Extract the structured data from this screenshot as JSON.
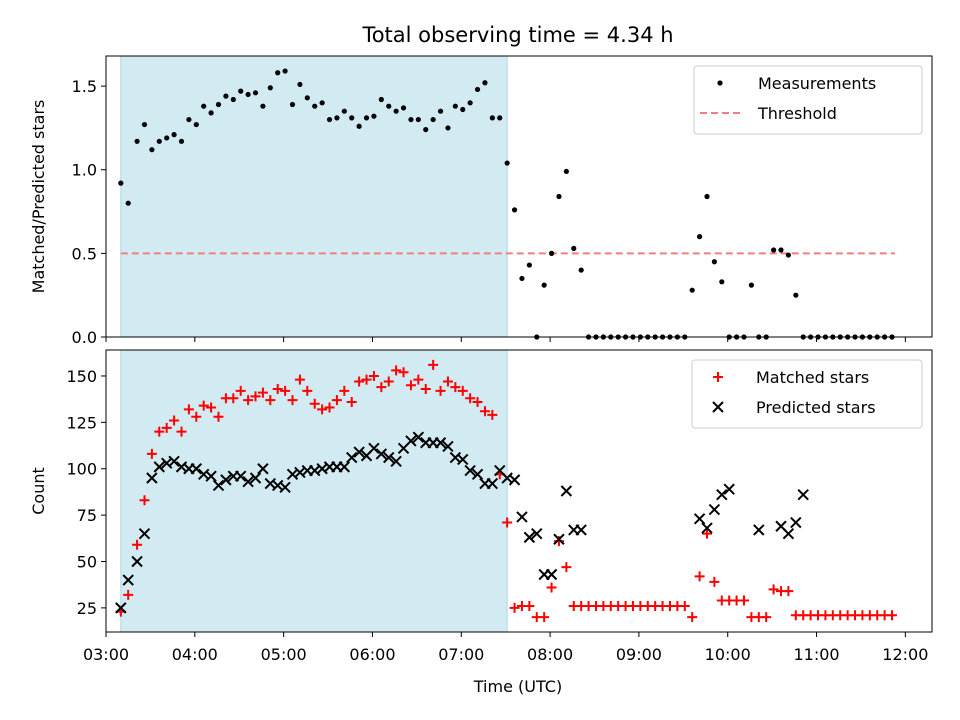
{
  "figure": {
    "title": "Total observing time = 4.34 h",
    "xlabel": "Time (UTC)",
    "shade_color": "#add8e6",
    "x_tick_labels": [
      "03:00",
      "04:00",
      "05:00",
      "06:00",
      "07:00",
      "08:00",
      "09:00",
      "10:00",
      "11:00",
      "12:00"
    ]
  },
  "chart_data": [
    {
      "type": "scatter",
      "ylabel": "Matched/Predicted stars",
      "ylim": [
        0,
        1.68
      ],
      "xlim": [
        "03:00",
        "12:18"
      ],
      "y_ticks": [
        0,
        0.5,
        1,
        1.5
      ],
      "y_tick_labels": [
        "0.0",
        "0.5",
        "1.0",
        "1.5"
      ],
      "shaded_interval": [
        "03:10",
        "07:31"
      ],
      "legend": {
        "placement": "top-right",
        "entries": [
          "Measurements",
          "Threshold"
        ]
      },
      "threshold": {
        "name": "Threshold",
        "value": 0.5,
        "x_range": [
          "03:10",
          "11:53"
        ],
        "color": "#f08080"
      },
      "series": [
        {
          "name": "Measurements",
          "marker": "dot",
          "color": "#000000",
          "x": [
            "03:10",
            "03:15",
            "03:21",
            "03:26",
            "03:31",
            "03:36",
            "03:41",
            "03:46",
            "03:51",
            "03:56",
            "04:01",
            "04:06",
            "04:11",
            "04:16",
            "04:21",
            "04:26",
            "04:31",
            "04:36",
            "04:41",
            "04:46",
            "04:51",
            "04:56",
            "05:01",
            "05:06",
            "05:11",
            "05:16",
            "05:21",
            "05:26",
            "05:31",
            "05:36",
            "05:41",
            "05:46",
            "05:51",
            "05:56",
            "06:01",
            "06:06",
            "06:11",
            "06:16",
            "06:21",
            "06:26",
            "06:31",
            "06:36",
            "06:41",
            "06:46",
            "06:51",
            "06:56",
            "07:01",
            "07:06",
            "07:11",
            "07:16",
            "07:21",
            "07:26",
            "07:31",
            "07:36",
            "07:41",
            "07:46",
            "07:51",
            "07:56",
            "08:01",
            "08:06",
            "08:11",
            "08:16",
            "08:21",
            "08:26",
            "08:31",
            "08:36",
            "08:41",
            "08:46",
            "08:51",
            "08:56",
            "09:01",
            "09:06",
            "09:11",
            "09:16",
            "09:21",
            "09:26",
            "09:31",
            "09:36",
            "09:41",
            "09:46",
            "09:51",
            "09:56",
            "10:01",
            "10:06",
            "10:11",
            "10:16",
            "10:21",
            "10:26",
            "10:31",
            "10:36",
            "10:41",
            "10:46",
            "10:51",
            "10:56",
            "11:01",
            "11:06",
            "11:11",
            "11:16",
            "11:21",
            "11:26",
            "11:31",
            "11:36",
            "11:41",
            "11:46",
            "11:51"
          ],
          "y": [
            0.92,
            0.8,
            1.17,
            1.27,
            1.12,
            1.17,
            1.19,
            1.21,
            1.17,
            1.3,
            1.27,
            1.38,
            1.34,
            1.39,
            1.44,
            1.42,
            1.47,
            1.45,
            1.46,
            1.38,
            1.49,
            1.58,
            1.59,
            1.39,
            1.51,
            1.43,
            1.38,
            1.4,
            1.3,
            1.31,
            1.35,
            1.31,
            1.26,
            1.31,
            1.32,
            1.42,
            1.38,
            1.35,
            1.37,
            1.3,
            1.3,
            1.24,
            1.3,
            1.35,
            1.25,
            1.38,
            1.36,
            1.4,
            1.48,
            1.52,
            1.31,
            1.31,
            1.04,
            0.76,
            0.35,
            0.43,
            0.0,
            0.31,
            0.5,
            0.84,
            0.99,
            0.53,
            0.4,
            0.0,
            0.0,
            0.0,
            0.0,
            0.0,
            0.0,
            0.0,
            0.0,
            0.0,
            0.0,
            0.0,
            0.0,
            0.0,
            0.0,
            0.28,
            0.6,
            0.84,
            0.45,
            0.33,
            0.0,
            0.0,
            0.0,
            0.31,
            0.0,
            0.0,
            0.52,
            0.52,
            0.49,
            0.25,
            0.0,
            0.0,
            0.0,
            0.0,
            0.0,
            0.0,
            0.0,
            0.0,
            0.0,
            0.0,
            0.0,
            0.0,
            0.0
          ]
        }
      ]
    },
    {
      "type": "scatter",
      "ylabel": "Count",
      "ylim": [
        12,
        164
      ],
      "xlim": [
        "03:00",
        "12:18"
      ],
      "y_ticks": [
        25,
        50,
        75,
        100,
        125,
        150
      ],
      "y_tick_labels": [
        "25",
        "50",
        "75",
        "100",
        "125",
        "150"
      ],
      "shaded_interval": [
        "03:10",
        "07:31"
      ],
      "legend": {
        "placement": "top-right",
        "entries": [
          "Matched stars",
          "Predicted stars"
        ]
      },
      "series": [
        {
          "name": "Matched stars",
          "marker": "plus",
          "color": "#ff0000",
          "x": [
            "03:10",
            "03:15",
            "03:21",
            "03:26",
            "03:31",
            "03:36",
            "03:41",
            "03:46",
            "03:51",
            "03:56",
            "04:01",
            "04:06",
            "04:11",
            "04:16",
            "04:21",
            "04:26",
            "04:31",
            "04:36",
            "04:41",
            "04:46",
            "04:51",
            "04:56",
            "05:01",
            "05:06",
            "05:11",
            "05:16",
            "05:21",
            "05:26",
            "05:31",
            "05:36",
            "05:41",
            "05:46",
            "05:51",
            "05:56",
            "06:01",
            "06:06",
            "06:11",
            "06:16",
            "06:21",
            "06:26",
            "06:31",
            "06:36",
            "06:41",
            "06:46",
            "06:51",
            "06:56",
            "07:01",
            "07:06",
            "07:11",
            "07:16",
            "07:21",
            "07:26",
            "07:31",
            "07:36",
            "07:41",
            "07:46",
            "07:51",
            "07:56",
            "08:01",
            "08:06",
            "08:11",
            "08:16",
            "08:21",
            "08:26",
            "08:31",
            "08:36",
            "08:41",
            "08:46",
            "08:51",
            "08:56",
            "09:01",
            "09:06",
            "09:11",
            "09:16",
            "09:21",
            "09:26",
            "09:31",
            "09:36",
            "09:41",
            "09:46",
            "09:51",
            "09:56",
            "10:01",
            "10:06",
            "10:11",
            "10:16",
            "10:21",
            "10:26",
            "10:31",
            "10:36",
            "10:41",
            "10:46",
            "10:51",
            "10:56",
            "11:01",
            "11:06",
            "11:11",
            "11:16",
            "11:21",
            "11:26",
            "11:31",
            "11:36",
            "11:41",
            "11:46",
            "11:51"
          ],
          "y": [
            23,
            32,
            59,
            83,
            108,
            120,
            122,
            126,
            120,
            132,
            128,
            134,
            133,
            128,
            138,
            138,
            142,
            137,
            139,
            141,
            137,
            143,
            142,
            137,
            148,
            142,
            135,
            132,
            133,
            137,
            142,
            136,
            147,
            148,
            150,
            144,
            147,
            153,
            152,
            145,
            148,
            143,
            156,
            142,
            147,
            144,
            142,
            138,
            136,
            131,
            129,
            97,
            71,
            25,
            26,
            26,
            20,
            20,
            36,
            61,
            47,
            26,
            26,
            26,
            26,
            26,
            26,
            26,
            26,
            26,
            26,
            26,
            26,
            26,
            26,
            26,
            26,
            20,
            42,
            65,
            39,
            29,
            29,
            29,
            29,
            20,
            20,
            20,
            35,
            34,
            34,
            21,
            21,
            21,
            21,
            21,
            21,
            21,
            21,
            21,
            21,
            21,
            21,
            21,
            21
          ]
        },
        {
          "name": "Predicted stars",
          "marker": "x",
          "color": "#000000",
          "x": [
            "03:10",
            "03:15",
            "03:21",
            "03:26",
            "03:31",
            "03:36",
            "03:41",
            "03:46",
            "03:51",
            "03:56",
            "04:01",
            "04:06",
            "04:11",
            "04:16",
            "04:21",
            "04:26",
            "04:31",
            "04:36",
            "04:41",
            "04:46",
            "04:51",
            "04:56",
            "05:01",
            "05:06",
            "05:11",
            "05:16",
            "05:21",
            "05:26",
            "05:31",
            "05:36",
            "05:41",
            "05:46",
            "05:51",
            "05:56",
            "06:01",
            "06:06",
            "06:11",
            "06:16",
            "06:21",
            "06:26",
            "06:31",
            "06:36",
            "06:41",
            "06:46",
            "06:51",
            "06:56",
            "07:01",
            "07:06",
            "07:11",
            "07:16",
            "07:21",
            "07:26",
            "07:31",
            "07:36",
            "07:41",
            "07:46",
            "07:51",
            "07:56",
            "08:01",
            "08:06",
            "08:11",
            "08:16",
            "08:21",
            "09:41",
            "09:46",
            "09:51",
            "09:56",
            "10:01",
            "10:21",
            "10:36",
            "10:41",
            "10:46",
            "10:51"
          ],
          "y": [
            25,
            40,
            50,
            65,
            95,
            101,
            103,
            104,
            101,
            100,
            100,
            97,
            96,
            91,
            94,
            96,
            96,
            93,
            95,
            100,
            92,
            91,
            90,
            97,
            98,
            99,
            99,
            100,
            101,
            101,
            101,
            106,
            109,
            107,
            111,
            108,
            106,
            104,
            111,
            115,
            117,
            114,
            114,
            114,
            112,
            106,
            105,
            99,
            97,
            92,
            92,
            99,
            95,
            94,
            74,
            63,
            65,
            43,
            43,
            62,
            88,
            67,
            67,
            73,
            68,
            78,
            86,
            89,
            67,
            69,
            65,
            71,
            86
          ]
        }
      ]
    }
  ]
}
